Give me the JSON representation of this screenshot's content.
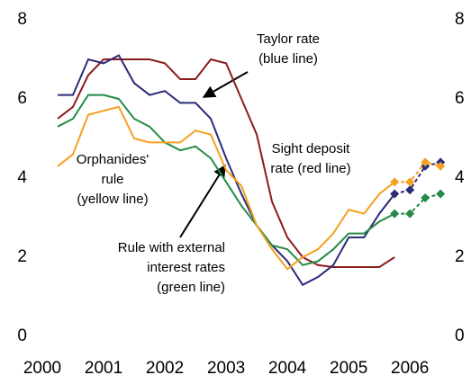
{
  "chart_data": {
    "type": "line",
    "x": [
      2000.25,
      2000.5,
      2000.75,
      2001,
      2001.25,
      2001.5,
      2001.75,
      2002,
      2002.25,
      2002.5,
      2002.75,
      2003,
      2003.25,
      2003.5,
      2003.75,
      2004,
      2004.25,
      2004.5,
      2004.75,
      2005,
      2005.25,
      2005.5,
      2005.75,
      2006,
      2006.25,
      2006.5
    ],
    "series": [
      {
        "color": "#8b1c1c",
        "values": [
          5.5,
          5.8,
          6.6,
          7.0,
          7.0,
          7.0,
          7.0,
          6.9,
          6.5,
          6.5,
          7.0,
          6.9,
          6.0,
          5.1,
          3.4,
          2.5,
          2.0,
          1.8,
          1.75,
          1.75,
          1.75,
          1.75,
          2.0,
          null,
          null,
          null
        ],
        "forecast": [
          null,
          null,
          null,
          null,
          null,
          null,
          null,
          null,
          null,
          null,
          null,
          null,
          null,
          null,
          null,
          null,
          null,
          null,
          null,
          null,
          null,
          null,
          null,
          null,
          null,
          null
        ]
      },
      {
        "color": "#2b2b78",
        "values": [
          6.1,
          6.1,
          7.0,
          6.9,
          7.1,
          6.4,
          6.1,
          6.2,
          5.9,
          5.9,
          5.5,
          4.5,
          3.6,
          2.8,
          2.3,
          1.9,
          1.3,
          1.5,
          1.8,
          2.5,
          2.5,
          3.1,
          3.6,
          null,
          null,
          null
        ],
        "forecast": [
          null,
          null,
          null,
          null,
          null,
          null,
          null,
          null,
          null,
          null,
          null,
          null,
          null,
          null,
          null,
          null,
          null,
          null,
          null,
          null,
          null,
          null,
          3.6,
          3.7,
          4.3,
          4.4
        ]
      },
      {
        "color": "#238b45",
        "values": [
          5.3,
          5.5,
          6.1,
          6.1,
          6.0,
          5.5,
          5.3,
          4.9,
          4.7,
          4.8,
          4.5,
          3.9,
          3.3,
          2.8,
          2.3,
          2.2,
          1.8,
          1.9,
          2.2,
          2.6,
          2.6,
          2.9,
          3.1,
          null,
          null,
          null
        ],
        "forecast": [
          null,
          null,
          null,
          null,
          null,
          null,
          null,
          null,
          null,
          null,
          null,
          null,
          null,
          null,
          null,
          null,
          null,
          null,
          null,
          null,
          null,
          null,
          3.1,
          3.1,
          3.5,
          3.6
        ]
      },
      {
        "color": "#f5a020",
        "values": [
          4.3,
          4.6,
          5.6,
          5.7,
          5.8,
          5.0,
          4.9,
          4.9,
          4.9,
          5.2,
          5.1,
          4.2,
          3.8,
          2.8,
          2.2,
          1.7,
          2.0,
          2.2,
          2.6,
          3.2,
          3.1,
          3.6,
          3.9,
          null,
          null,
          null
        ],
        "forecast": [
          null,
          null,
          null,
          null,
          null,
          null,
          null,
          null,
          null,
          null,
          null,
          null,
          null,
          null,
          null,
          null,
          null,
          null,
          null,
          null,
          null,
          null,
          3.9,
          3.9,
          4.4,
          4.3
        ]
      }
    ],
    "xlim": [
      2000,
      2006.6
    ],
    "xticks": [
      2000,
      2001,
      2002,
      2003,
      2004,
      2005,
      2006
    ],
    "ylim": [
      0,
      8
    ],
    "yticks": [
      0,
      2,
      4,
      6,
      8
    ],
    "y2lim": [
      0,
      8
    ],
    "y2ticks": [
      0,
      2,
      4,
      6,
      8
    ],
    "annotations": [
      {
        "lines": [
          "Taylor rate",
          "(blue line)"
        ]
      },
      {
        "lines": [
          "Sight deposit",
          "rate (red line)"
        ]
      },
      {
        "lines": [
          "Orphanides'",
          "rule",
          "(yellow line)"
        ]
      },
      {
        "lines": [
          "Rule with external",
          "interest rates",
          "(green line)"
        ]
      }
    ]
  }
}
